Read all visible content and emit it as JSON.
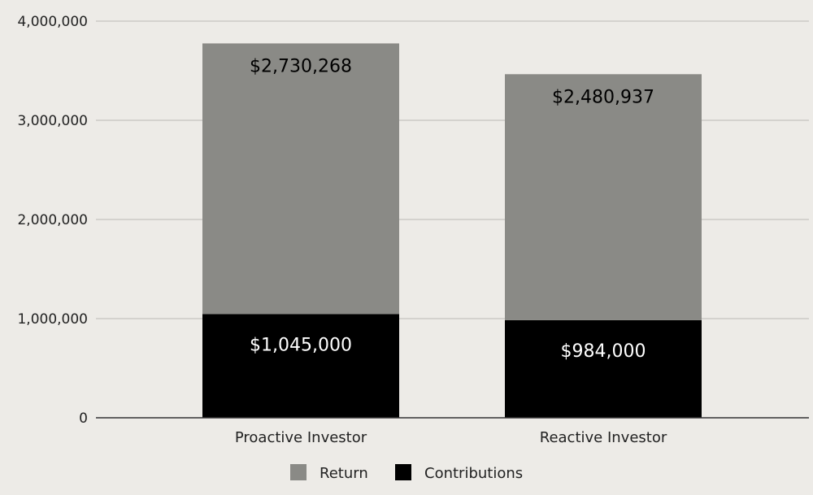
{
  "chart_data": {
    "type": "bar",
    "stacked": true,
    "title": "",
    "xlabel": "",
    "ylabel": "",
    "ylim": [
      0,
      4000000
    ],
    "yticks": [
      0,
      1000000,
      2000000,
      3000000,
      4000000
    ],
    "ytick_labels": [
      "0",
      "1,000,000",
      "2,000,000",
      "3,000,000",
      "4,000,000"
    ],
    "grid": true,
    "legend_position": "bottom",
    "categories": [
      "Proactive Investor",
      "Reactive Investor"
    ],
    "series": [
      {
        "name": "Contributions",
        "color": "#000000",
        "label_color": "#ffffff",
        "values": [
          1045000,
          984000
        ],
        "data_labels": [
          "$1,045,000",
          "$984,000"
        ]
      },
      {
        "name": "Return",
        "color": "#8a8a86",
        "label_color": "#000000",
        "values": [
          2730268,
          2480937
        ],
        "data_labels": [
          "$2,730,268",
          "$2,480,937"
        ]
      }
    ],
    "legend": [
      "Return",
      "Contributions"
    ]
  }
}
